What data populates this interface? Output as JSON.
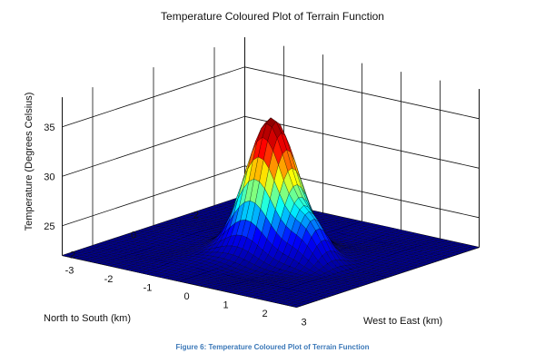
{
  "chart_data": {
    "type": "surface",
    "title": "Temperature Coloured Plot of Terrain Function",
    "xlabel": "West to East (km)",
    "ylabel": "North to South (km)",
    "zlabel": "Temperature (Degrees Celsius)",
    "x_ticks": [
      "-3",
      "-2",
      "-1",
      "0",
      "1",
      "2",
      "3"
    ],
    "y_ticks": [
      "-2",
      "0",
      "2"
    ],
    "z_ticks": [
      "25",
      "30",
      "35"
    ],
    "xlim": [
      -3,
      3
    ],
    "ylim": [
      -3,
      3
    ],
    "zlim": [
      22,
      38
    ],
    "base_temperature": 22,
    "peaks": [
      {
        "x": 0,
        "y": 0,
        "temperature": 35.5
      },
      {
        "x": 1.2,
        "y": 0.2,
        "temperature": 25.5
      }
    ],
    "colormap": [
      "#00008f",
      "#0000ff",
      "#00ffff",
      "#ffff00",
      "#ff0000",
      "#800000"
    ],
    "grid": true
  },
  "caption": "Figure 6: Temperature Coloured Plot of Terrain Function"
}
